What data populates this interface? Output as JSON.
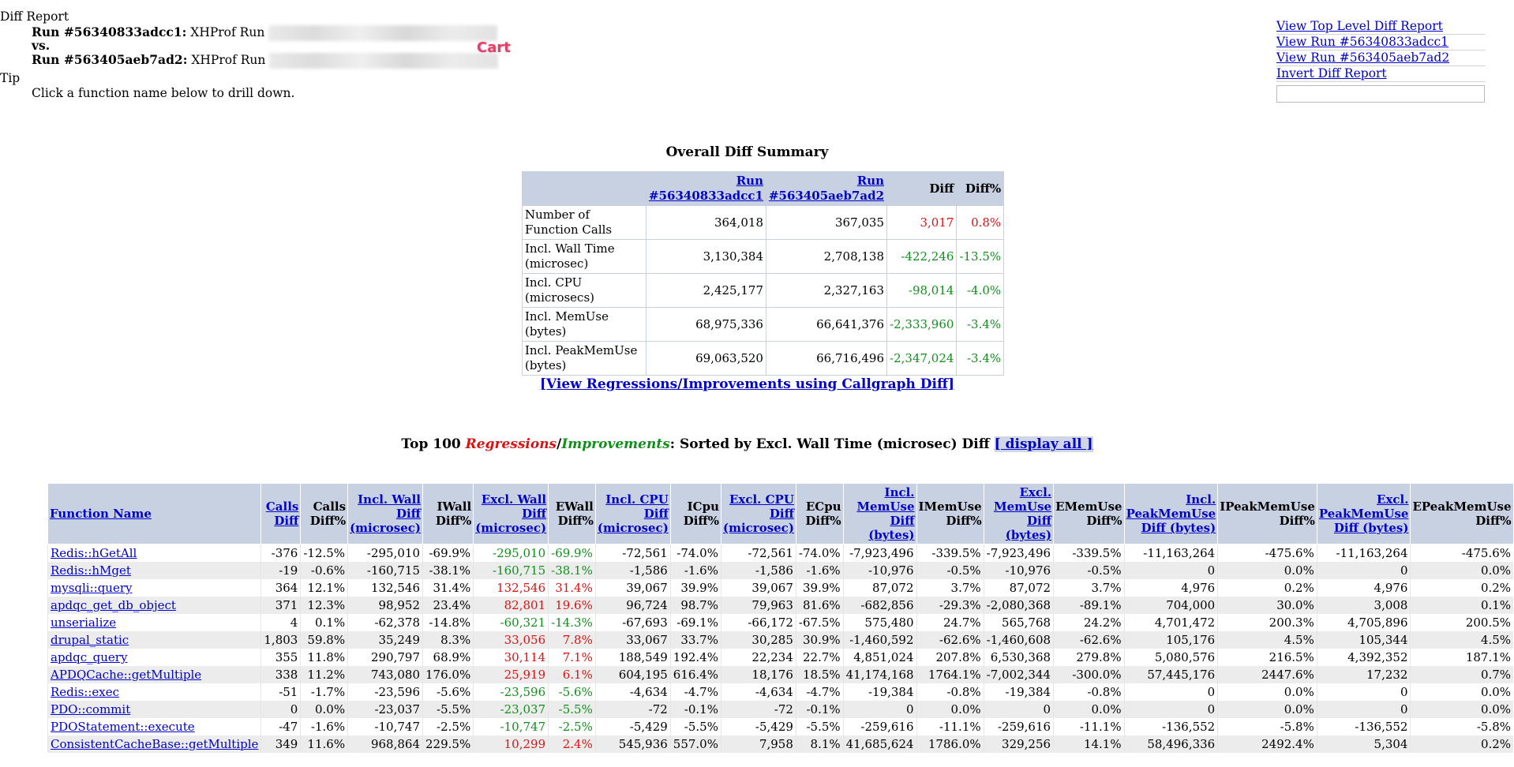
{
  "header": {
    "diff_report_label": "Diff Report",
    "run1_label": "Run #56340833adcc1:",
    "run1_text": "XHProf Run",
    "vs_label": "vs.",
    "run2_label": "Run #563405aeb7ad2:",
    "run2_text": "XHProf Run",
    "tip_label": "Tip",
    "tip_text": "Click a function name below to drill down.",
    "cart": "Cart"
  },
  "side_links": {
    "top_level": "View Top Level Diff Report",
    "run1": "View Run #56340833adcc1",
    "run2": "View Run #563405aeb7ad2",
    "invert": "Invert Diff Report"
  },
  "summary": {
    "title": "Overall Diff Summary",
    "col_run1": "Run #56340833adcc1",
    "col_run2": "Run #563405aeb7ad2",
    "col_diff": "Diff",
    "col_diffpct": "Diff%",
    "rows": [
      {
        "label": "Number of Function Calls",
        "r1": "364,018",
        "r2": "367,035",
        "diff": "3,017",
        "pct": "0.8%",
        "dir": "red"
      },
      {
        "label": "Incl. Wall Time (microsec)",
        "r1": "3,130,384",
        "r2": "2,708,138",
        "diff": "-422,246",
        "pct": "-13.5%",
        "dir": "green"
      },
      {
        "label": "Incl. CPU (microsecs)",
        "r1": "2,425,177",
        "r2": "2,327,163",
        "diff": "-98,014",
        "pct": "-4.0%",
        "dir": "green"
      },
      {
        "label": "Incl. MemUse (bytes)",
        "r1": "68,975,336",
        "r2": "66,641,376",
        "diff": "-2,333,960",
        "pct": "-3.4%",
        "dir": "green"
      },
      {
        "label": "Incl. PeakMemUse (bytes)",
        "r1": "69,063,520",
        "r2": "66,716,496",
        "diff": "-2,347,024",
        "pct": "-3.4%",
        "dir": "green"
      }
    ]
  },
  "callgraph_link": "[View Regressions/Improvements using Callgraph Diff]",
  "top_title": {
    "prefix": "Top 100 ",
    "regressions": "Regressions",
    "slash": "/",
    "improvements": "Improvements",
    "suffix": ": Sorted by Excl. Wall Time (microsec) Diff ",
    "display_all": "[ display all ]"
  },
  "table": {
    "headers": [
      "Function Name",
      "Calls Diff",
      "Calls Diff%",
      "Incl. Wall Diff (microsec)",
      "IWall Diff%",
      "Excl. Wall Diff (microsec)",
      "EWall Diff%",
      "Incl. CPU Diff (microsec)",
      "ICpu Diff%",
      "Excl. CPU Diff (microsec)",
      "ECpu Diff%",
      "Incl. MemUse Diff (bytes)",
      "IMemUse Diff%",
      "Excl. MemUse Diff (bytes)",
      "EMemUse Diff%",
      "Incl. PeakMemUse Diff (bytes)",
      "IPeakMemUse Diff%",
      "Excl. PeakMemUse Diff (bytes)",
      "EPeakMemUse Diff%"
    ],
    "rows": [
      {
        "fn": "Redis::hGetAll",
        "v": [
          "-376",
          "-12.5%",
          "-295,010",
          "-69.9%",
          "-295,010",
          "-69.9%",
          "-72,561",
          "-74.0%",
          "-72,561",
          "-74.0%",
          "-7,923,496",
          "-339.5%",
          "-7,923,496",
          "-339.5%",
          "-11,163,264",
          "-475.6%",
          "-11,163,264",
          "-475.6%"
        ],
        "dir": "green"
      },
      {
        "fn": "Redis::hMget",
        "v": [
          "-19",
          "-0.6%",
          "-160,715",
          "-38.1%",
          "-160,715",
          "-38.1%",
          "-1,586",
          "-1.6%",
          "-1,586",
          "-1.6%",
          "-10,976",
          "-0.5%",
          "-10,976",
          "-0.5%",
          "0",
          "0.0%",
          "0",
          "0.0%"
        ],
        "dir": "green"
      },
      {
        "fn": "mysqli::query",
        "v": [
          "364",
          "12.1%",
          "132,546",
          "31.4%",
          "132,546",
          "31.4%",
          "39,067",
          "39.9%",
          "39,067",
          "39.9%",
          "87,072",
          "3.7%",
          "87,072",
          "3.7%",
          "4,976",
          "0.2%",
          "4,976",
          "0.2%"
        ],
        "dir": "red"
      },
      {
        "fn": "apdqc_get_db_object",
        "v": [
          "371",
          "12.3%",
          "98,952",
          "23.4%",
          "82,801",
          "19.6%",
          "96,724",
          "98.7%",
          "79,963",
          "81.6%",
          "-682,856",
          "-29.3%",
          "-2,080,368",
          "-89.1%",
          "704,000",
          "30.0%",
          "3,008",
          "0.1%"
        ],
        "dir": "red"
      },
      {
        "fn": "unserialize",
        "v": [
          "4",
          "0.1%",
          "-62,378",
          "-14.8%",
          "-60,321",
          "-14.3%",
          "-67,693",
          "-69.1%",
          "-66,172",
          "-67.5%",
          "575,480",
          "24.7%",
          "565,768",
          "24.2%",
          "4,701,472",
          "200.3%",
          "4,705,896",
          "200.5%"
        ],
        "dir": "green"
      },
      {
        "fn": "drupal_static",
        "v": [
          "1,803",
          "59.8%",
          "35,249",
          "8.3%",
          "33,056",
          "7.8%",
          "33,067",
          "33.7%",
          "30,285",
          "30.9%",
          "-1,460,592",
          "-62.6%",
          "-1,460,608",
          "-62.6%",
          "105,176",
          "4.5%",
          "105,344",
          "4.5%"
        ],
        "dir": "red"
      },
      {
        "fn": "apdqc_query",
        "v": [
          "355",
          "11.8%",
          "290,797",
          "68.9%",
          "30,114",
          "7.1%",
          "188,549",
          "192.4%",
          "22,234",
          "22.7%",
          "4,851,024",
          "207.8%",
          "6,530,368",
          "279.8%",
          "5,080,576",
          "216.5%",
          "4,392,352",
          "187.1%"
        ],
        "dir": "red"
      },
      {
        "fn": "APDQCache::getMultiple",
        "v": [
          "338",
          "11.2%",
          "743,080",
          "176.0%",
          "25,919",
          "6.1%",
          "604,195",
          "616.4%",
          "18,176",
          "18.5%",
          "41,174,168",
          "1764.1%",
          "-7,002,344",
          "-300.0%",
          "57,445,176",
          "2447.6%",
          "17,232",
          "0.7%"
        ],
        "dir": "red"
      },
      {
        "fn": "Redis::exec",
        "v": [
          "-51",
          "-1.7%",
          "-23,596",
          "-5.6%",
          "-23,596",
          "-5.6%",
          "-4,634",
          "-4.7%",
          "-4,634",
          "-4.7%",
          "-19,384",
          "-0.8%",
          "-19,384",
          "-0.8%",
          "0",
          "0.0%",
          "0",
          "0.0%"
        ],
        "dir": "green"
      },
      {
        "fn": "PDO::commit",
        "v": [
          "0",
          "0.0%",
          "-23,037",
          "-5.5%",
          "-23,037",
          "-5.5%",
          "-72",
          "-0.1%",
          "-72",
          "-0.1%",
          "0",
          "0.0%",
          "0",
          "0.0%",
          "0",
          "0.0%",
          "0",
          "0.0%"
        ],
        "dir": "green"
      },
      {
        "fn": "PDOStatement::execute",
        "v": [
          "-47",
          "-1.6%",
          "-10,747",
          "-2.5%",
          "-10,747",
          "-2.5%",
          "-5,429",
          "-5.5%",
          "-5,429",
          "-5.5%",
          "-259,616",
          "-11.1%",
          "-259,616",
          "-11.1%",
          "-136,552",
          "-5.8%",
          "-136,552",
          "-5.8%"
        ],
        "dir": "green"
      },
      {
        "fn": "ConsistentCacheBase::getMultiple",
        "v": [
          "349",
          "11.6%",
          "968,864",
          "229.5%",
          "10,299",
          "2.4%",
          "545,936",
          "557.0%",
          "7,958",
          "8.1%",
          "41,685,624",
          "1786.0%",
          "329,256",
          "14.1%",
          "58,496,336",
          "2492.4%",
          "5,304",
          "0.2%"
        ],
        "dir": "red"
      }
    ]
  }
}
